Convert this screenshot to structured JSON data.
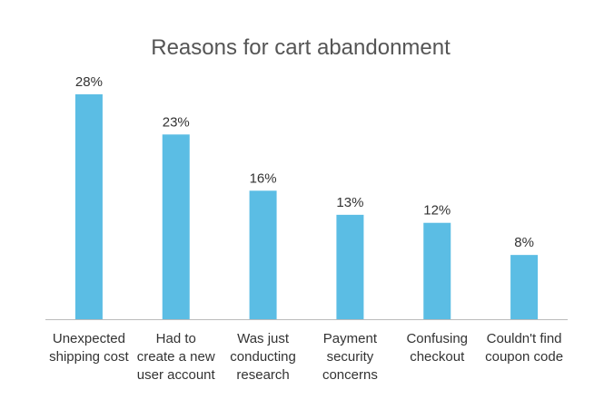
{
  "chart_data": {
    "type": "bar",
    "title": "Reasons for cart abandonment",
    "categories": [
      "Unexpected\nshipping cost",
      "Had to\ncreate a new\nuser account",
      "Was just\nconducting\nresearch",
      "Payment\nsecurity\nconcerns",
      "Confusing\ncheckout",
      "Couldn't find\ncoupon code"
    ],
    "values": [
      28,
      23,
      16,
      13,
      12,
      8
    ],
    "value_labels": [
      "28%",
      "23%",
      "16%",
      "13%",
      "12%",
      "8%"
    ],
    "color": "#5bbde4"
  }
}
